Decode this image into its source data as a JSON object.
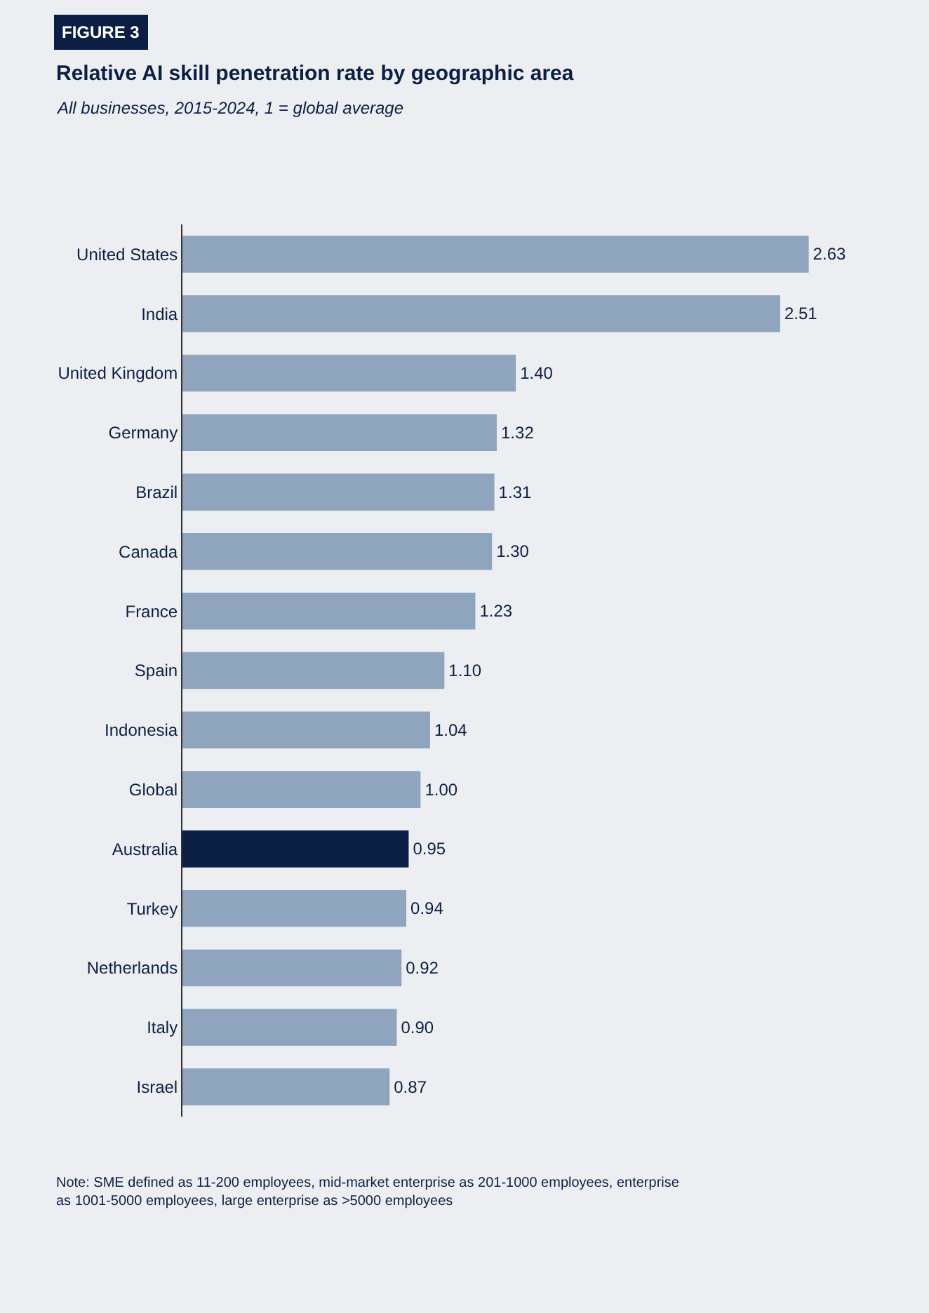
{
  "chart_data": {
    "type": "bar",
    "orientation": "horizontal",
    "title": "Relative AI skill penetration rate by geographic area",
    "subtitle": "All businesses, 2015-2024, 1 = global average",
    "categories": [
      "United States",
      "India",
      "United Kingdom",
      "Germany",
      "Brazil",
      "Canada",
      "France",
      "Spain",
      "Indonesia",
      "Global",
      "Australia",
      "Turkey",
      "Netherlands",
      "Italy",
      "Israel"
    ],
    "values": [
      2.63,
      2.51,
      1.4,
      1.32,
      1.31,
      1.3,
      1.23,
      1.1,
      1.04,
      1.0,
      0.95,
      0.94,
      0.92,
      0.9,
      0.87
    ],
    "value_labels": [
      "2.63",
      "2.51",
      "1.40",
      "1.32",
      "1.31",
      "1.30",
      "1.23",
      "1.10",
      "1.04",
      "1.00",
      "0.95",
      "0.94",
      "0.92",
      "0.90",
      "0.87"
    ],
    "colors": [
      "#8fa5be",
      "#8fa5be",
      "#8fa5be",
      "#8fa5be",
      "#8fa5be",
      "#8fa5be",
      "#8fa5be",
      "#8fa5be",
      "#8fa5be",
      "#8fa5be",
      "#0b1f45",
      "#8fa5be",
      "#8fa5be",
      "#8fa5be",
      "#8fa5be"
    ],
    "annotations": [
      "FIGURE 3",
      "Note: SME defined as 11-200 employees, mid-market enterprise as 201-1000 employees, enterprise as 1001-5000 employees, large enterprise as >5000 employees"
    ]
  }
}
